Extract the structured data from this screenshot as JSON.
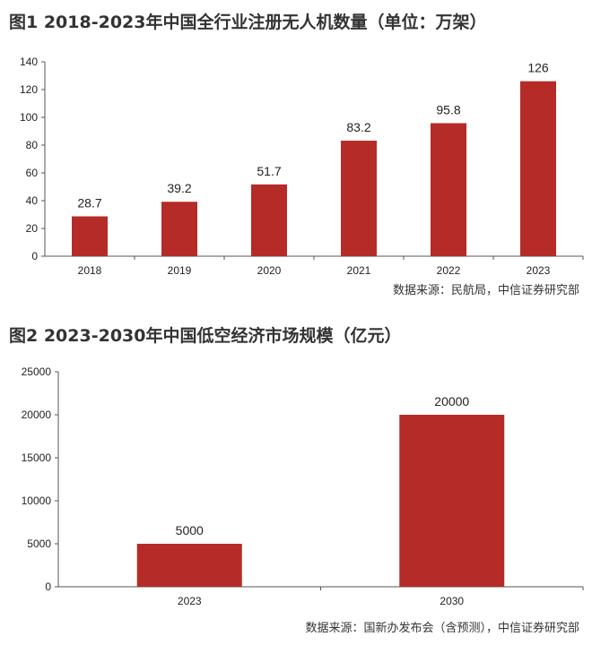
{
  "figures": [
    {
      "title": "图1  2018-2023年中国全行业注册无人机数量（单位：万架）",
      "source": "数据来源：民航局，中信证券研究部"
    },
    {
      "title": "图2  2023-2030年中国低空经济市场规模（亿元）",
      "source": "数据来源：国新办发布会（含预测），中信证券研究部"
    }
  ],
  "chart_data": [
    {
      "type": "bar",
      "title": "图1  2018-2023年中国全行业注册无人机数量（单位：万架）",
      "categories": [
        "2018",
        "2019",
        "2020",
        "2021",
        "2022",
        "2023"
      ],
      "values": [
        28.7,
        39.2,
        51.7,
        83.2,
        95.8,
        126
      ],
      "value_labels": [
        "28.7",
        "39.2",
        "51.7",
        "83.2",
        "95.8",
        "126"
      ],
      "ylim": [
        0,
        140
      ],
      "yticks": [
        0,
        20,
        40,
        60,
        80,
        100,
        120,
        140
      ],
      "grid": false,
      "bar_color": "#B52B27"
    },
    {
      "type": "bar",
      "title": "图2  2023-2030年中国低空经济市场规模（亿元）",
      "categories": [
        "2023",
        "2030"
      ],
      "values": [
        5000,
        20000
      ],
      "value_labels": [
        "5000",
        "20000"
      ],
      "ylim": [
        0,
        25000
      ],
      "yticks": [
        0,
        5000,
        10000,
        15000,
        20000,
        25000
      ],
      "grid": false,
      "bar_color": "#B52B27"
    }
  ]
}
